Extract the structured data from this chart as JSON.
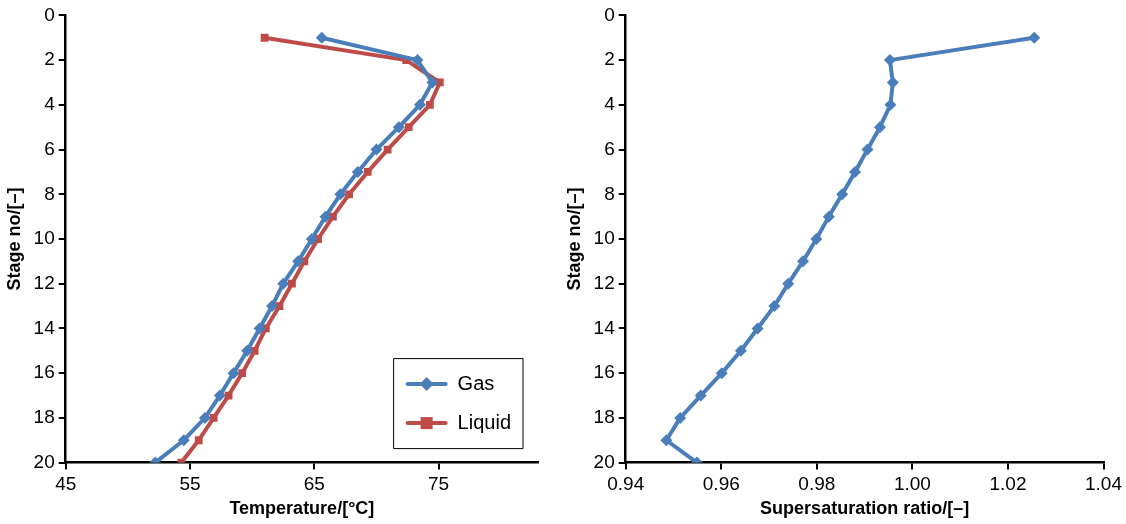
{
  "chart_data": [
    {
      "type": "line",
      "xlabel": "Temperature/[°C]",
      "ylabel": "Stage no/[–]",
      "xlim": [
        45,
        83
      ],
      "xticks": [
        45,
        55,
        65,
        75
      ],
      "ylim": [
        20,
        0
      ],
      "yticks": [
        0,
        2,
        4,
        6,
        8,
        10,
        12,
        14,
        16,
        18,
        20
      ],
      "grid": false,
      "legend": "bottom right",
      "line_style": "solid",
      "series": [
        {
          "name": "Gas",
          "color": "#4a7ebb",
          "marker": "diamond",
          "x": [
            65.6,
            73.3,
            74.5,
            73.5,
            71.8,
            70.0,
            68.5,
            67.1,
            65.9,
            64.8,
            63.7,
            62.5,
            61.6,
            60.6,
            59.6,
            58.5,
            57.4,
            56.2,
            54.5,
            52.2
          ],
          "values": [
            1,
            2,
            3,
            4,
            5,
            6,
            7,
            8,
            9,
            10,
            11,
            12,
            13,
            14,
            15,
            16,
            17,
            18,
            19,
            20
          ]
        },
        {
          "name": "Liquid",
          "color": "#be4b48",
          "marker": "square",
          "x": [
            61.0,
            72.4,
            75.1,
            74.3,
            72.6,
            70.9,
            69.3,
            67.8,
            66.5,
            65.3,
            64.2,
            63.2,
            62.2,
            61.1,
            60.2,
            59.2,
            58.1,
            56.9,
            55.7,
            54.3
          ],
          "values": [
            1,
            2,
            3,
            4,
            5,
            6,
            7,
            8,
            9,
            10,
            11,
            12,
            13,
            14,
            15,
            16,
            17,
            18,
            19,
            20
          ]
        }
      ]
    },
    {
      "type": "line",
      "xlabel": "Supersaturation ratio/[–]",
      "ylabel": "Stage no/[–]",
      "xlim": [
        0.94,
        1.04
      ],
      "xticks": [
        0.94,
        0.96,
        0.98,
        {
          "value": 1,
          "label": "1.00"
        },
        1.02,
        1.04
      ],
      "ylim": [
        20,
        0
      ],
      "yticks": [
        0,
        2,
        4,
        6,
        8,
        10,
        12,
        14,
        16,
        18,
        20
      ],
      "grid": false,
      "legend": false,
      "line_style": "solid",
      "series": [
        {
          "color": "#4a7ebb",
          "marker": "diamond",
          "x": [
            1.0255,
            0.9953,
            0.9959,
            0.9954,
            0.9932,
            0.9906,
            0.988,
            0.9853,
            0.9825,
            0.9799,
            0.9771,
            0.974,
            0.9711,
            0.9676,
            0.9641,
            0.9601,
            0.9557,
            0.9514,
            0.9485,
            0.9549
          ],
          "values": [
            1,
            2,
            3,
            4,
            5,
            6,
            7,
            8,
            9,
            10,
            11,
            12,
            13,
            14,
            15,
            16,
            17,
            18,
            19,
            20
          ]
        }
      ]
    }
  ]
}
